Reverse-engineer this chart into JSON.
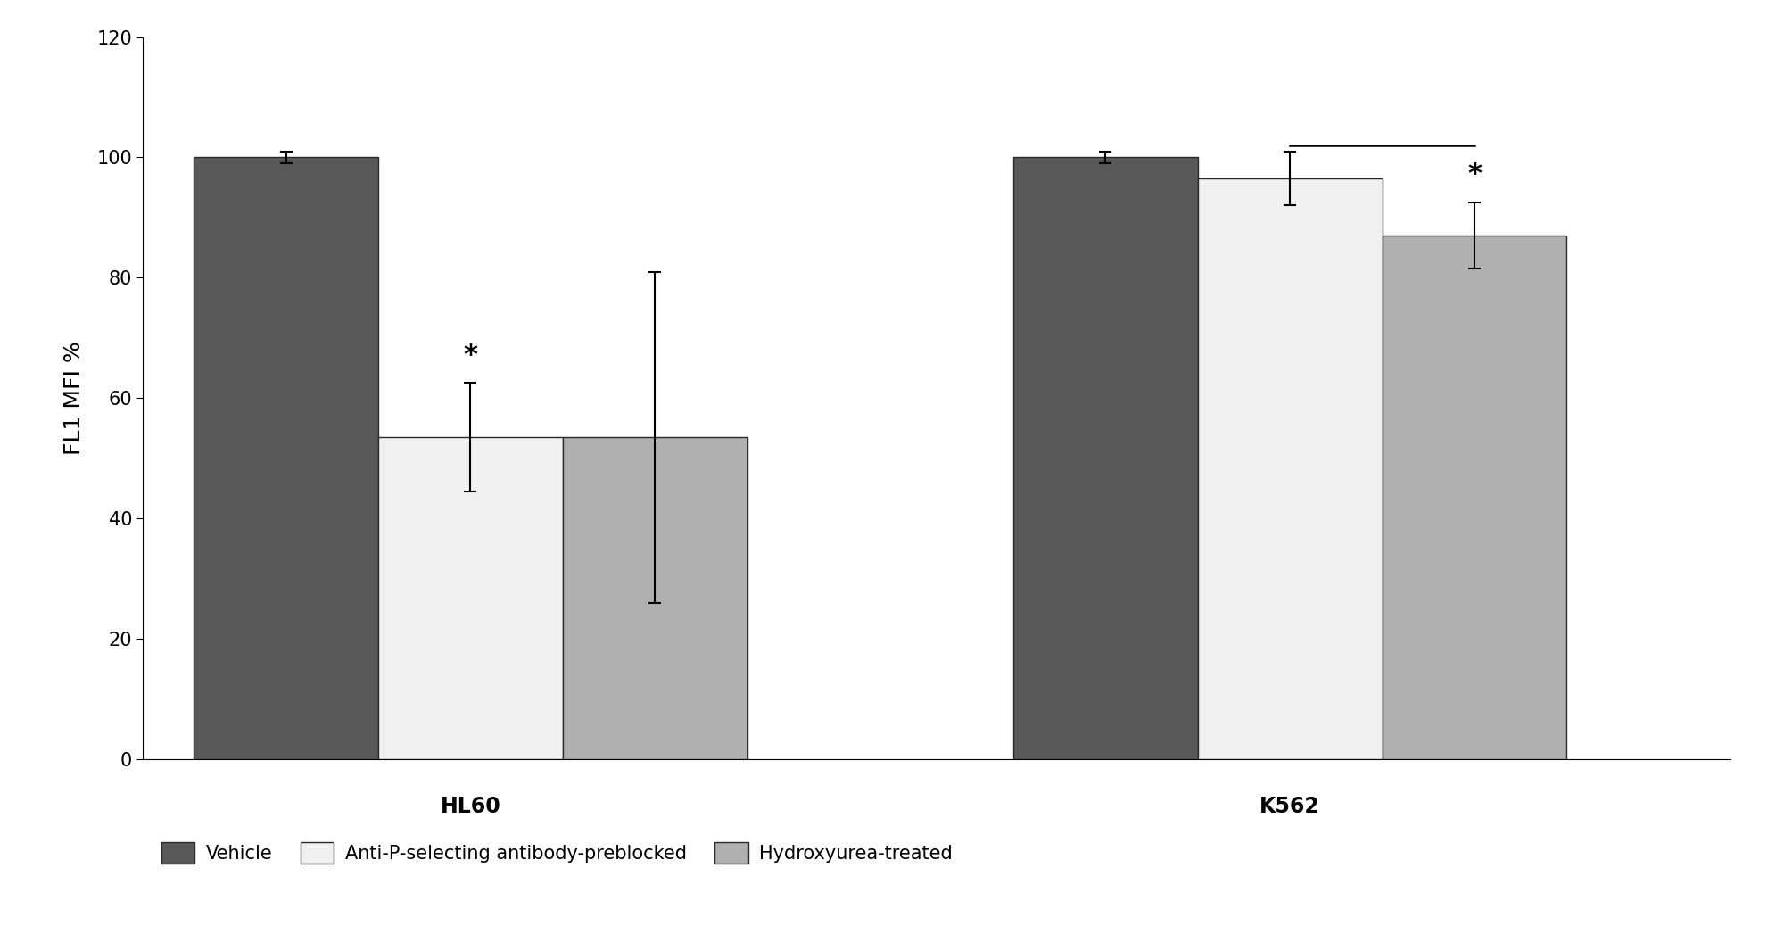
{
  "groups": [
    "HL60",
    "K562"
  ],
  "categories": [
    "Vehicle",
    "Anti-P-selecting antibody-preblocked",
    "Hydroxyurea-treated"
  ],
  "values": {
    "HL60": [
      100,
      53.5,
      53.5
    ],
    "K562": [
      100,
      96.5,
      87
    ]
  },
  "errors": {
    "HL60": [
      1.0,
      9.0,
      27.5
    ],
    "K562": [
      1.0,
      4.5,
      5.5
    ]
  },
  "bar_colors": [
    "#595959",
    "#f0f0f0",
    "#b0b0b0"
  ],
  "bar_edgecolors": [
    "#2a2a2a",
    "#2a2a2a",
    "#2a2a2a"
  ],
  "significance": {
    "HL60": [
      false,
      true,
      false
    ],
    "K562": [
      false,
      false,
      true
    ]
  },
  "ylabel": "FL1 MFI %",
  "ylim": [
    0,
    120
  ],
  "yticks": [
    0,
    20,
    40,
    60,
    80,
    100,
    120
  ],
  "background_color": "#ffffff",
  "bar_width": 0.18,
  "ylabel_fontsize": 18,
  "tick_fontsize": 15,
  "legend_fontsize": 15,
  "group_label_fontsize": 17,
  "star_fontsize": 22
}
